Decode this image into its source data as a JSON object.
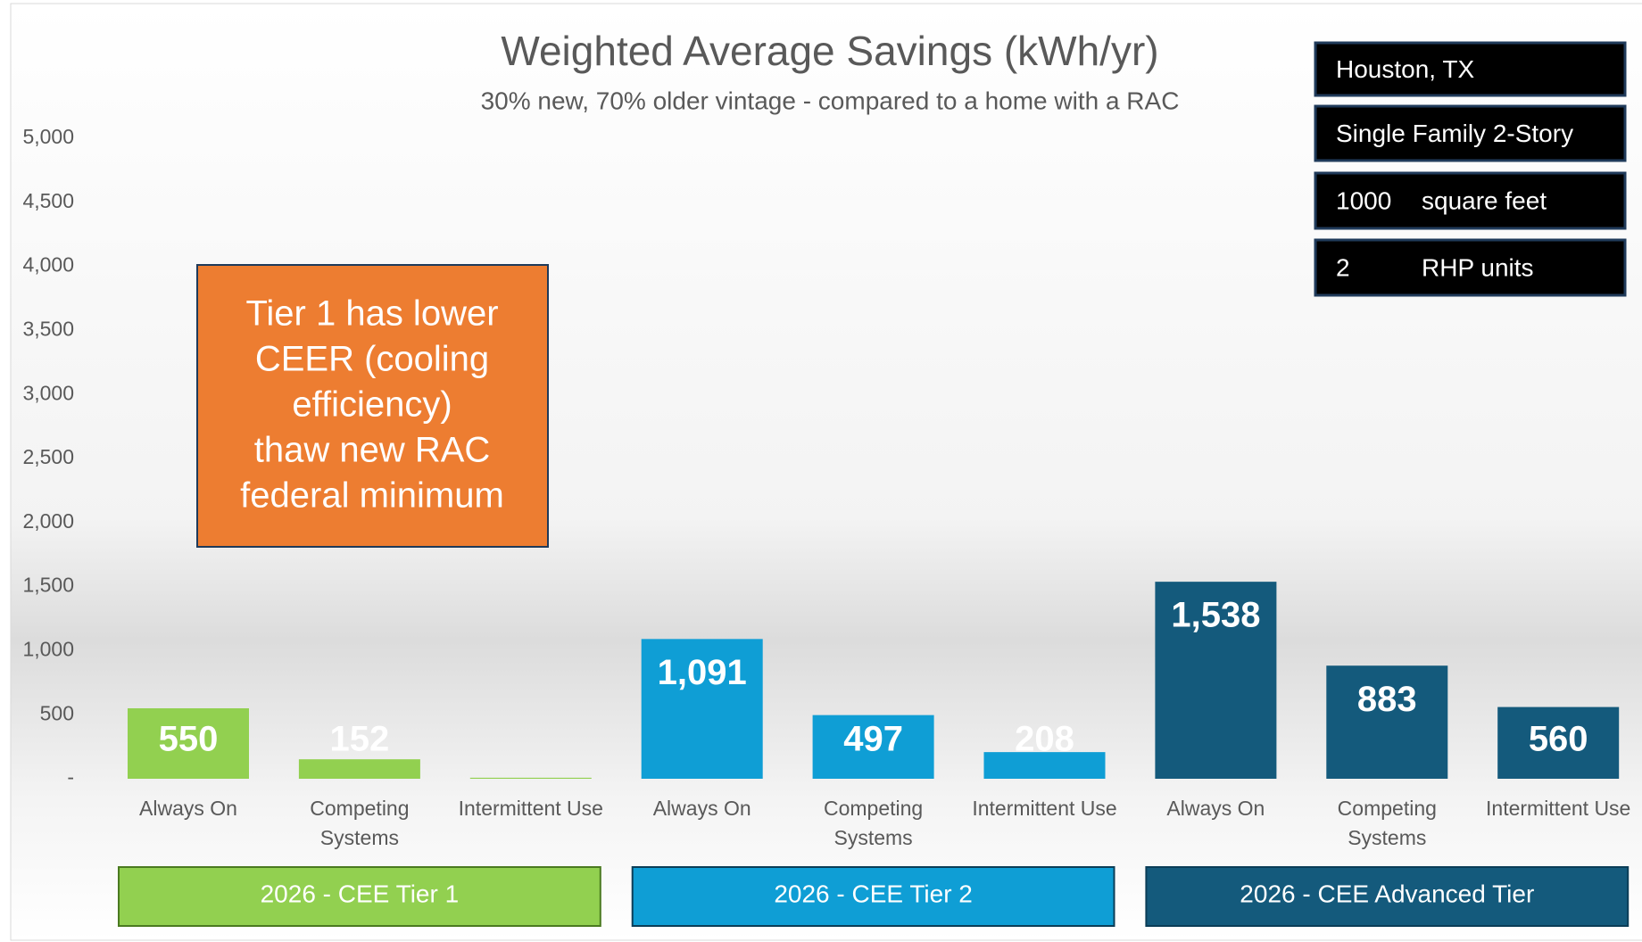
{
  "chart_data": {
    "type": "bar",
    "title": "Weighted Average Savings (kWh/yr)",
    "subtitle": "30% new, 70% older vintage - compared to a home with a RAC",
    "ylim": [
      0,
      5000
    ],
    "yticks": [
      {
        "value": 0,
        "label": "-"
      },
      500,
      {
        "value": 1000,
        "label": "1,000"
      },
      {
        "value": 1500,
        "label": "1,500"
      },
      {
        "value": 2000,
        "label": "2,000"
      },
      {
        "value": 2500,
        "label": "2,500"
      },
      {
        "value": 3000,
        "label": "3,000"
      },
      {
        "value": 3500,
        "label": "3,500"
      },
      {
        "value": 4000,
        "label": "4,000"
      },
      {
        "value": 4500,
        "label": "4,500"
      },
      {
        "value": 5000,
        "label": "5,000"
      }
    ],
    "series": [
      {
        "name": "2026 - CEE Tier 1",
        "color": "#92d050",
        "categories": [
          "Always On",
          "Competing Systems",
          "Intermittent Use"
        ],
        "values": [
          550,
          152,
          8
        ],
        "value_labels": [
          "550",
          "152",
          null
        ]
      },
      {
        "name": "2026 - CEE Tier 2",
        "color": "#0f9ed5",
        "categories": [
          "Always On",
          "Competing Systems",
          "Intermittent Use"
        ],
        "values": [
          1091,
          497,
          208
        ],
        "value_labels": [
          "1,091",
          "497",
          "208"
        ]
      },
      {
        "name": "2026 - CEE Advanced Tier",
        "color": "#145a7c",
        "categories": [
          "Always On",
          "Competing Systems",
          "Intermittent Use"
        ],
        "values": [
          1538,
          883,
          560
        ],
        "value_labels": [
          "1,538",
          "883",
          "560"
        ]
      }
    ],
    "annotation": [
      "Tier 1 has lower",
      "CEER (cooling",
      "efficiency)",
      "thaw new RAC",
      "federal minimum"
    ],
    "info_box": [
      [
        "Houston, TX"
      ],
      [
        "Single Family 2-Story"
      ],
      [
        1000,
        "square feet"
      ],
      [
        2,
        "RHP units"
      ]
    ]
  }
}
